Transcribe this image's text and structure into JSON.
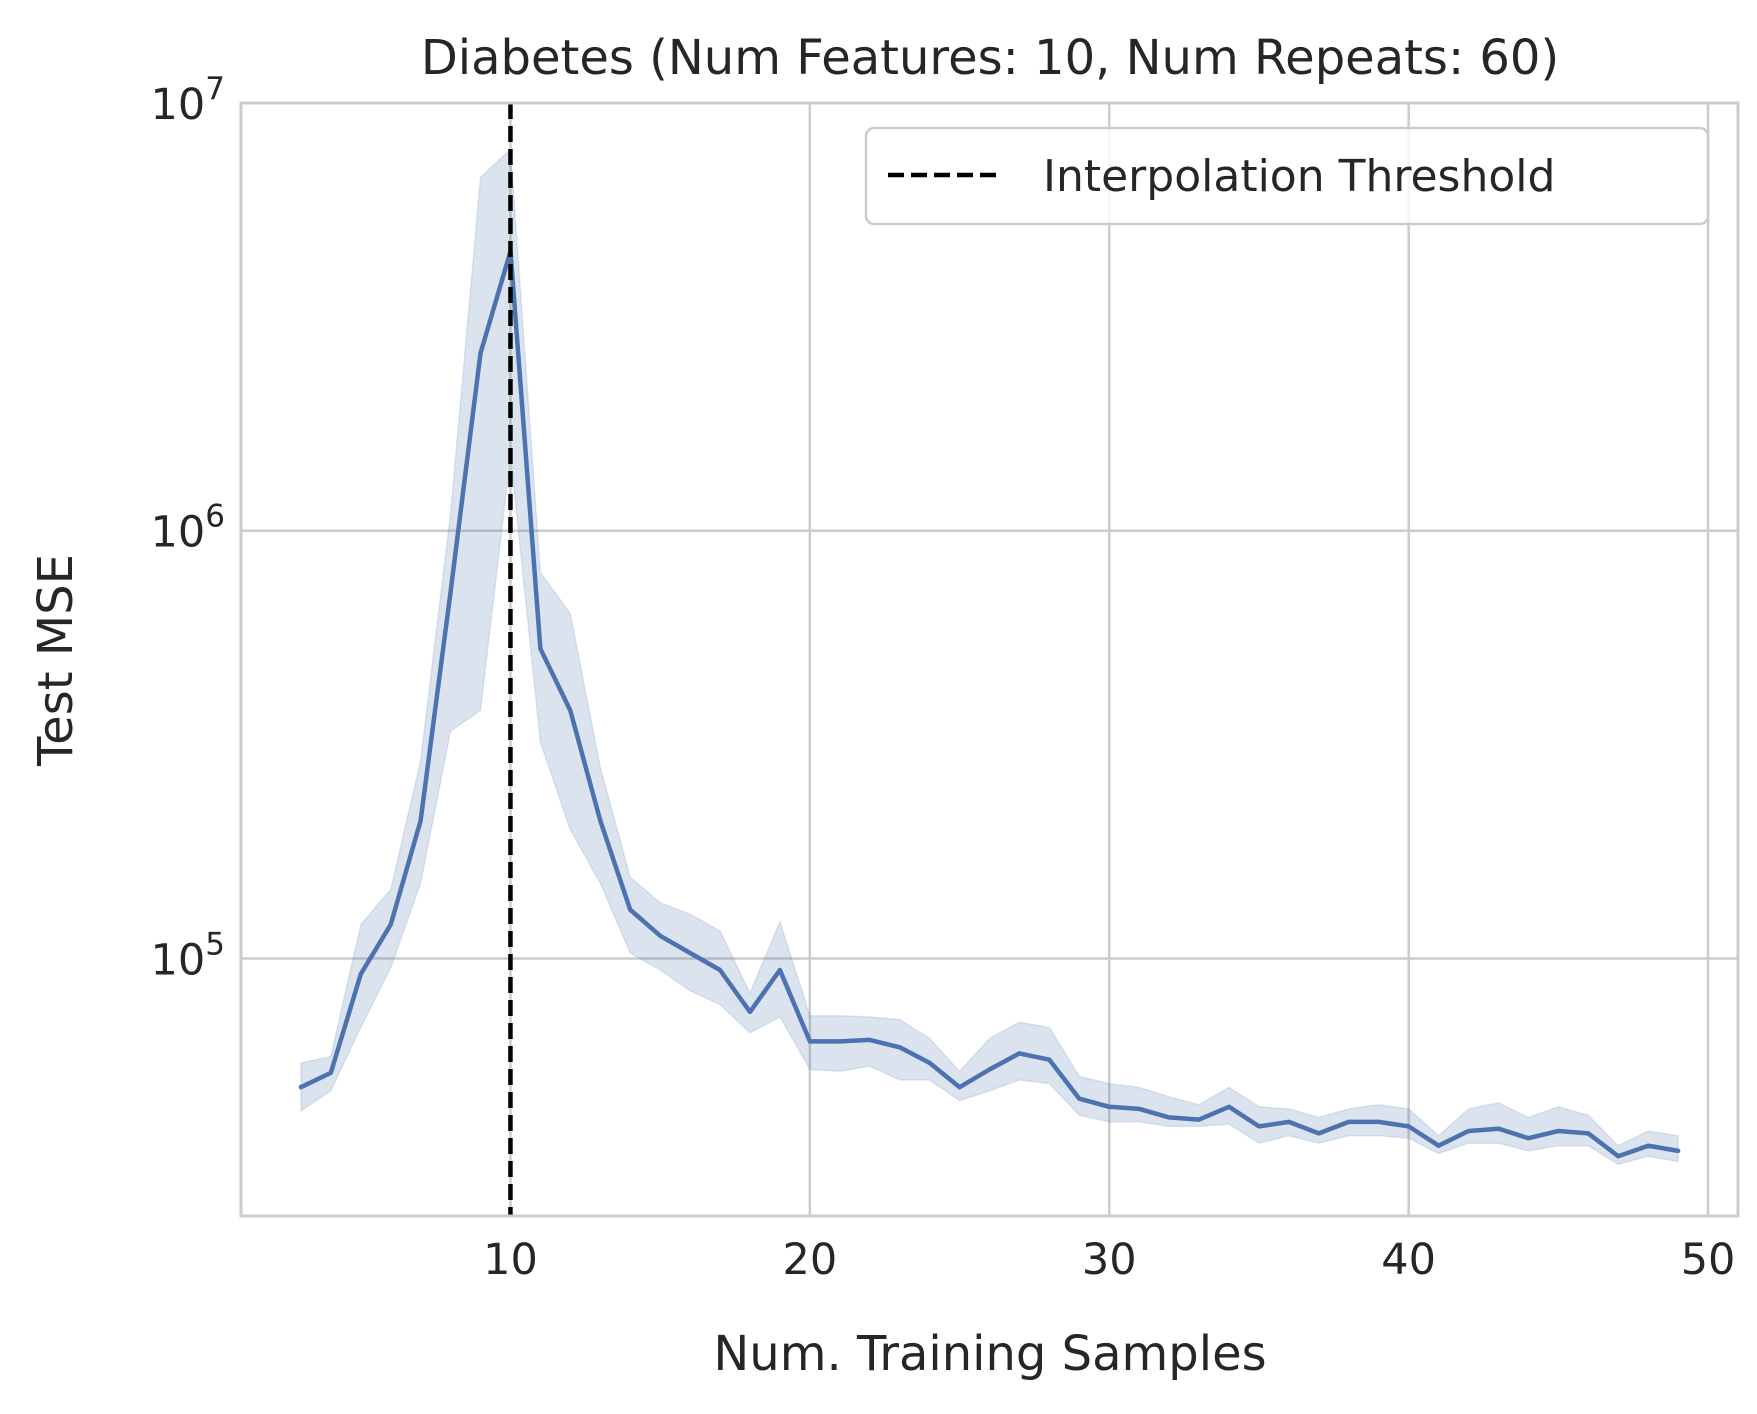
{
  "chart_data": {
    "type": "line",
    "title": "Diabetes (Num Features: 10, Num Repeats: 60)",
    "xlabel": "Num. Training Samples",
    "ylabel": "Test MSE",
    "y_scale": "log",
    "xlim": [
      1,
      51
    ],
    "ylim": [
      25000,
      10000000
    ],
    "grid": true,
    "legend_placement": "top-right",
    "x_ticks": [
      {
        "value": 10,
        "label": "10"
      },
      {
        "value": 20,
        "label": "20"
      },
      {
        "value": 30,
        "label": "30"
      },
      {
        "value": 40,
        "label": "40"
      },
      {
        "value": 50,
        "label": "50"
      }
    ],
    "y_ticks": [
      {
        "value": 100000,
        "base": "10",
        "exponent": "5"
      },
      {
        "value": 1000000,
        "base": "10",
        "exponent": "6"
      },
      {
        "value": 10000000,
        "base": "10",
        "exponent": "7"
      }
    ],
    "line_color": "#4c72b0",
    "band_color": "#4c72b0",
    "x": [
      3,
      4,
      5,
      6,
      7,
      8,
      9,
      10,
      11,
      12,
      13,
      14,
      15,
      16,
      17,
      18,
      19,
      20,
      21,
      22,
      23,
      24,
      25,
      26,
      27,
      28,
      29,
      30,
      31,
      32,
      33,
      34,
      35,
      36,
      37,
      38,
      39,
      40,
      41,
      42,
      43,
      44,
      45,
      46,
      47,
      48,
      49
    ],
    "mean": [
      50000,
      54000,
      92000,
      120000,
      210000,
      720000,
      2600000,
      4500000,
      530000,
      380000,
      210000,
      130000,
      113000,
      103000,
      94000,
      75000,
      94000,
      64000,
      64000,
      64500,
      62000,
      57000,
      50000,
      55000,
      60000,
      58000,
      47000,
      45000,
      44500,
      42500,
      42000,
      45000,
      40500,
      41500,
      39000,
      41500,
      41500,
      40500,
      36500,
      39500,
      40000,
      38000,
      39500,
      39000,
      34500,
      36500,
      35500
    ],
    "lower": [
      44000,
      49000,
      69000,
      95000,
      150000,
      340000,
      380000,
      1500000,
      320000,
      200000,
      150000,
      103000,
      94000,
      84000,
      78000,
      67000,
      73000,
      55000,
      54500,
      56000,
      52000,
      52000,
      46500,
      49000,
      52000,
      51000,
      43000,
      41500,
      41500,
      40500,
      40500,
      41000,
      37000,
      38500,
      37000,
      38500,
      38500,
      38000,
      35000,
      37000,
      37000,
      35500,
      36500,
      36500,
      33000,
      34500,
      33500
    ],
    "upper": [
      57000,
      59000,
      120000,
      145000,
      290000,
      1100000,
      6700000,
      7800000,
      800000,
      640000,
      280000,
      155000,
      135000,
      127000,
      116000,
      83000,
      122000,
      73500,
      73500,
      73000,
      72000,
      65000,
      54500,
      65000,
      71000,
      69000,
      53000,
      51000,
      50000,
      47500,
      45500,
      50000,
      45000,
      44500,
      42500,
      44500,
      45500,
      44500,
      38500,
      44500,
      46000,
      42500,
      45000,
      43000,
      36500,
      39500,
      38500
    ],
    "threshold": {
      "x": 10,
      "label": "Interpolation Threshold",
      "color": "#000000"
    }
  }
}
